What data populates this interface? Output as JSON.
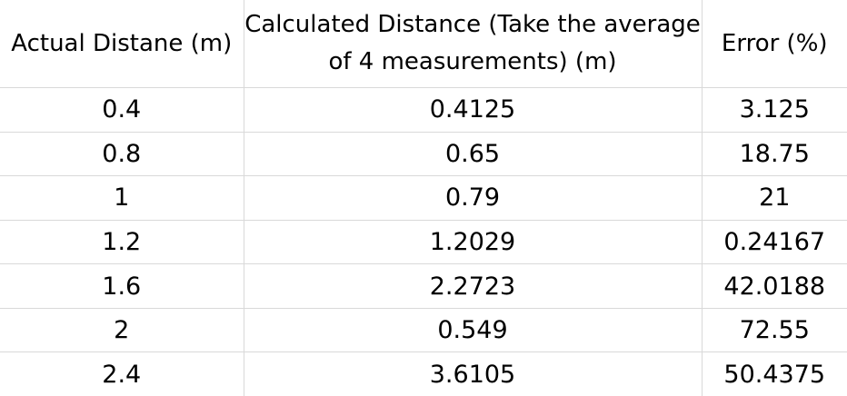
{
  "table": {
    "headers": [
      "Actual Distane (m)",
      "Calculated Distance (Take the average of 4 measurements) (m)",
      "Error (%)"
    ],
    "rows": [
      [
        "0.4",
        "0.4125",
        "3.125"
      ],
      [
        "0.8",
        "0.65",
        "18.75"
      ],
      [
        "1",
        "0.79",
        "21"
      ],
      [
        "1.2",
        "1.2029",
        "0.24167"
      ],
      [
        "1.6",
        "2.2723",
        "42.0188"
      ],
      [
        "2",
        "0.549",
        "72.55"
      ],
      [
        "2.4",
        "3.6105",
        "50.4375"
      ]
    ]
  }
}
